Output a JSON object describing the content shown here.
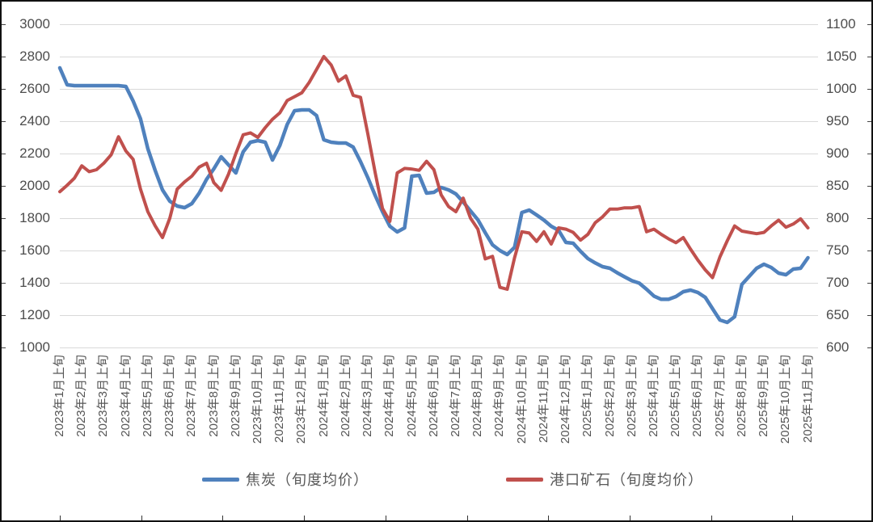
{
  "chart_data": {
    "type": "line",
    "title": "",
    "xlabel": "",
    "ylabel_left": "",
    "ylabel_right": "",
    "grid": "horizontal",
    "legend_position": "bottom",
    "points_per_month": 3,
    "left_axis": {
      "min": 1000,
      "max": 3000,
      "step": 200,
      "ticks": [
        "3000",
        "2800",
        "2600",
        "2400",
        "2200",
        "2000",
        "1800",
        "1600",
        "1400",
        "1200",
        "1000"
      ]
    },
    "right_axis": {
      "min": 600,
      "max": 1100,
      "step": 50,
      "ticks": [
        "1100",
        "1050",
        "1000",
        "950",
        "900",
        "850",
        "800",
        "750",
        "700",
        "650",
        "600"
      ]
    },
    "x_labels": [
      "2023年1月上旬",
      "2023年2月上旬",
      "2023年3月上旬",
      "2023年4月上旬",
      "2023年5月上旬",
      "2023年6月上旬",
      "2023年7月上旬",
      "2023年8月上旬",
      "2023年9月上旬",
      "2023年10月上旬",
      "2023年11月上旬",
      "2023年12月上旬",
      "2024年1月上旬",
      "2024年2月上旬",
      "2024年3月上旬",
      "2024年4月上旬",
      "2024年5月上旬",
      "2024年6月上旬",
      "2024年7月上旬",
      "2024年8月上旬",
      "2024年9月上旬",
      "2024年10月上旬",
      "2024年11月上旬",
      "2024年12月上旬",
      "2025年1月上旬",
      "2025年2月上旬",
      "2025年3月上旬",
      "2025年4月上旬",
      "2025年5月上旬",
      "2025年6月上旬",
      "2025年7月上旬",
      "2025年8月上旬",
      "2025年9月上旬",
      "2025年10月上旬",
      "2025年11月上旬"
    ],
    "series": [
      {
        "name": "焦炭（旬度均价）",
        "axis": "left",
        "color": "#4F81BD",
        "values": [
          2730,
          2625,
          2620,
          2620,
          2620,
          2620,
          2620,
          2620,
          2620,
          2615,
          2525,
          2415,
          2230,
          2095,
          1975,
          1905,
          1875,
          1865,
          1890,
          1955,
          2040,
          2105,
          2180,
          2130,
          2080,
          2210,
          2270,
          2280,
          2270,
          2160,
          2250,
          2380,
          2465,
          2470,
          2470,
          2435,
          2285,
          2270,
          2265,
          2265,
          2240,
          2150,
          2050,
          1940,
          1840,
          1750,
          1715,
          1740,
          2060,
          2065,
          1955,
          1960,
          1990,
          1975,
          1950,
          1900,
          1845,
          1790,
          1710,
          1635,
          1600,
          1575,
          1620,
          1835,
          1850,
          1820,
          1788,
          1750,
          1725,
          1650,
          1645,
          1595,
          1550,
          1523,
          1500,
          1490,
          1462,
          1437,
          1413,
          1398,
          1360,
          1318,
          1298,
          1298,
          1315,
          1345,
          1355,
          1340,
          1310,
          1240,
          1170,
          1155,
          1190,
          1390,
          1440,
          1490,
          1515,
          1495,
          1460,
          1450,
          1485,
          1490,
          1555
        ]
      },
      {
        "name": "港口矿石（旬度均价）",
        "axis": "right",
        "color": "#C0504D",
        "values": [
          841,
          851,
          862,
          881,
          872,
          875,
          885,
          898,
          926,
          904,
          891,
          845,
          810,
          788,
          770,
          800,
          845,
          856,
          865,
          879,
          885,
          855,
          843,
          868,
          900,
          929,
          932,
          925,
          940,
          953,
          963,
          982,
          988,
          994,
          1010,
          1030,
          1050,
          1037,
          1012,
          1020,
          990,
          987,
          930,
          870,
          815,
          795,
          870,
          877,
          876,
          874,
          888,
          875,
          836,
          818,
          810,
          831,
          800,
          783,
          737,
          741,
          693,
          690,
          739,
          779,
          777,
          764,
          779,
          760,
          785,
          783,
          778,
          766,
          775,
          793,
          802,
          814,
          814,
          816,
          816,
          818,
          779,
          783,
          775,
          768,
          762,
          770,
          752,
          735,
          720,
          708,
          740,
          765,
          788,
          780,
          778,
          776,
          778,
          788,
          797,
          786,
          791,
          799,
          785
        ]
      }
    ]
  },
  "legend": {
    "items": [
      {
        "label": "焦炭（旬度均价）",
        "color": "#4F81BD"
      },
      {
        "label": "港口矿石（旬度均价）",
        "color": "#C0504D"
      }
    ]
  },
  "colors": {
    "gridline": "#d9d9d9",
    "frame": "#111111",
    "axis_text": "#4d4d4d"
  }
}
